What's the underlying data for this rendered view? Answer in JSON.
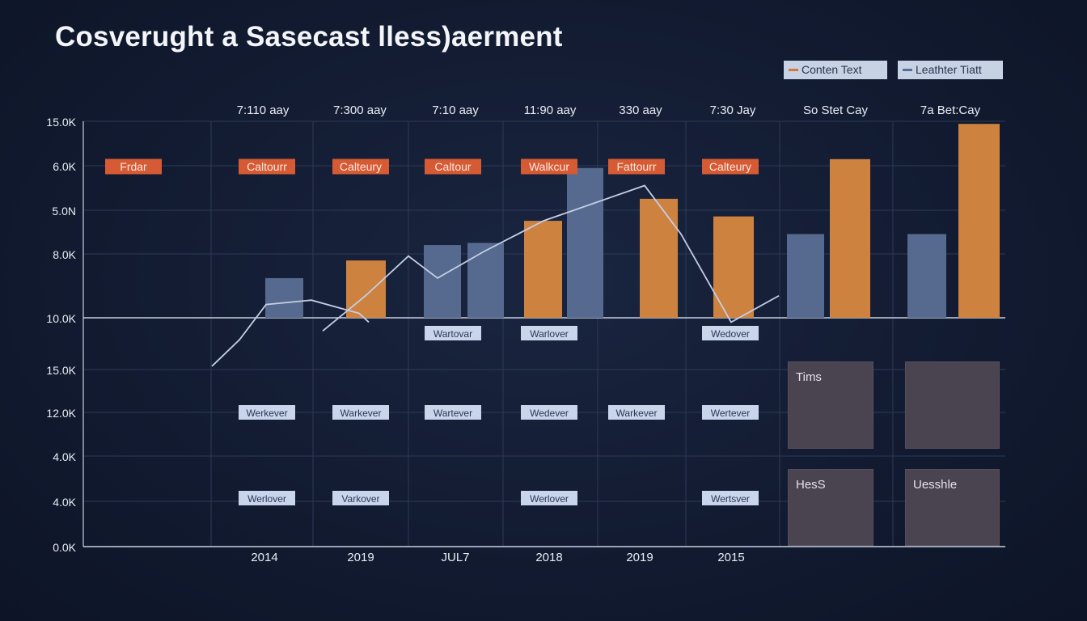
{
  "title": "Cosverught a Sasecast lless)aerment",
  "legend": [
    {
      "label": "Conten Text",
      "swatch": "orange-line"
    },
    {
      "label": "Leathter Tiatt",
      "swatch": "blue-line"
    }
  ],
  "colors": {
    "orange_bar": "#cd8240",
    "blue_bar": "#56698e",
    "line": "#c4cfe6",
    "grid": "#2d3a57",
    "axis": "#c8d0e0",
    "axis_text": "#e9edf4",
    "red_tag": "#d65a34",
    "light_tag": "#c9d5ea",
    "box": "#4a4350"
  },
  "chart_data": {
    "type": "bar",
    "title": "Cosverught a Sasecast lless)aerment",
    "column_headers": [
      "7:110 aay",
      "7:300 aay",
      "7:10 aay",
      "11:90 aay",
      "330 aay",
      "7:30 Jay",
      "So Stet Cay",
      "7a Bet:Cay"
    ],
    "y_tick_labels": [
      "15.0K",
      "6.0K",
      "5.0N",
      "8.0K",
      "10.0K",
      "15.0K",
      "12.0K",
      "4.0K",
      "4.0K",
      "0.0K"
    ],
    "x_tick_labels": [
      "2014",
      "2019",
      "JUL7",
      "2018",
      "2019",
      "2015"
    ],
    "grid": true,
    "series": [
      {
        "name": "Conten Text",
        "type": "bar",
        "color": "#cd8240",
        "values": [
          null,
          1.3,
          null,
          2.2,
          2.7,
          2.3,
          3.6,
          4.4
        ]
      },
      {
        "name": "Leathter Tiatt",
        "type": "bar",
        "color": "#56698e",
        "values": [
          0.9,
          null,
          1.7,
          3.4,
          null,
          null,
          1.9,
          1.9
        ]
      },
      {
        "name": "line",
        "type": "line",
        "color": "#c4cfe6",
        "values": [
          -1.1,
          -0.5,
          0.3,
          0.4,
          0.1,
          -0.1,
          -0.3,
          0.5,
          1.4,
          0.9,
          1.5,
          2.2,
          3.0,
          1.9,
          -0.1,
          0.5
        ]
      }
    ],
    "row_tags": [
      {
        "row": 0,
        "style": "red",
        "labels": [
          "Frdar",
          "Caltourr",
          "Calteury",
          "Caltour",
          "Walkcur",
          "Fattourr",
          "Calteury"
        ]
      },
      {
        "row": 1,
        "style": "light",
        "labels": [
          null,
          null,
          null,
          "Wartovar",
          "Warlover",
          null,
          "Wedover"
        ]
      },
      {
        "row": 2,
        "style": "light",
        "labels": [
          null,
          "Werkever",
          "Warkever",
          "Wartever",
          "Wedever",
          "Warkever",
          "Wertever"
        ]
      },
      {
        "row": 3,
        "style": "light",
        "labels": [
          null,
          "Werlover",
          "Varkover",
          null,
          "Werlover",
          null,
          "Wertsver"
        ]
      }
    ],
    "boxes": [
      "Tims",
      "",
      "HesS",
      "Uesshle"
    ]
  }
}
